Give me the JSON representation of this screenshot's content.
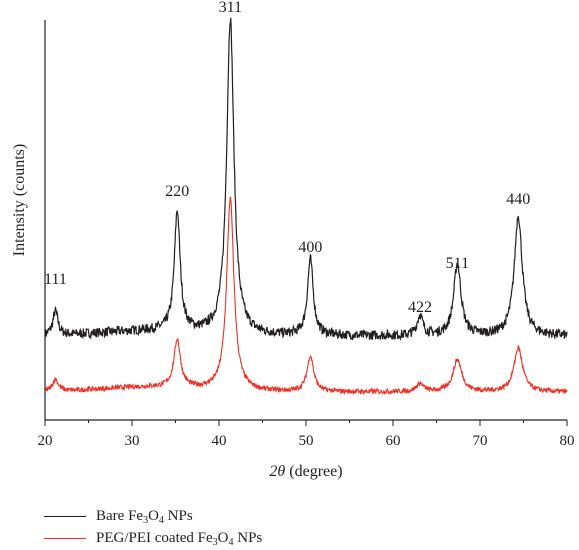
{
  "chart_data": {
    "type": "line",
    "xlabel_var": "2θ",
    "xlabel_unit": " (degree)",
    "ylabel": "Intensity (counts)",
    "xlim": [
      20,
      80
    ],
    "xticks": [
      20,
      30,
      40,
      50,
      60,
      70,
      80
    ],
    "peak_labels": [
      {
        "text": "111",
        "x": 21.2,
        "y": 0.32
      },
      {
        "text": "220",
        "x": 35.2,
        "y": 0.54
      },
      {
        "text": "311",
        "x": 41.3,
        "y": 1.0
      },
      {
        "text": "400",
        "x": 50.5,
        "y": 0.4
      },
      {
        "text": "422",
        "x": 63.1,
        "y": 0.25
      },
      {
        "text": "511",
        "x": 67.4,
        "y": 0.36
      },
      {
        "text": "440",
        "x": 74.4,
        "y": 0.52
      }
    ],
    "series": [
      {
        "name": "Bare Fe3O4 NPs",
        "color": "#231f20",
        "baseline": 0.21,
        "peaks": [
          {
            "x": 21.2,
            "h": 0.06,
            "w": 0.35
          },
          {
            "x": 35.2,
            "h": 0.3,
            "w": 0.4
          },
          {
            "x": 41.3,
            "h": 0.79,
            "w": 0.5
          },
          {
            "x": 50.5,
            "h": 0.19,
            "w": 0.4
          },
          {
            "x": 63.1,
            "h": 0.05,
            "w": 0.4
          },
          {
            "x": 67.4,
            "h": 0.18,
            "w": 0.5
          },
          {
            "x": 74.4,
            "h": 0.3,
            "w": 0.55
          }
        ]
      },
      {
        "name": "PEG/PEI coated Fe3O4 NPs",
        "color": "#ee3124",
        "baseline": 0.07,
        "peaks": [
          {
            "x": 21.2,
            "h": 0.03,
            "w": 0.4
          },
          {
            "x": 35.2,
            "h": 0.12,
            "w": 0.45
          },
          {
            "x": 41.3,
            "h": 0.48,
            "w": 0.5
          },
          {
            "x": 50.5,
            "h": 0.09,
            "w": 0.45
          },
          {
            "x": 63.1,
            "h": 0.02,
            "w": 0.5
          },
          {
            "x": 67.4,
            "h": 0.08,
            "w": 0.6
          },
          {
            "x": 74.4,
            "h": 0.11,
            "w": 0.6
          }
        ]
      }
    ],
    "legend_position": "bottom-left"
  },
  "legend": {
    "items": [
      {
        "prefix": "Bare Fe",
        "sub1": "3",
        "mid": "O",
        "sub2": "4",
        "suffix": " NPs",
        "color": "#231f20"
      },
      {
        "prefix": "PEG/PEI coated Fe",
        "sub1": "3",
        "mid": "O",
        "sub2": "4",
        "suffix": " NPs",
        "color": "#ee3124"
      }
    ]
  }
}
